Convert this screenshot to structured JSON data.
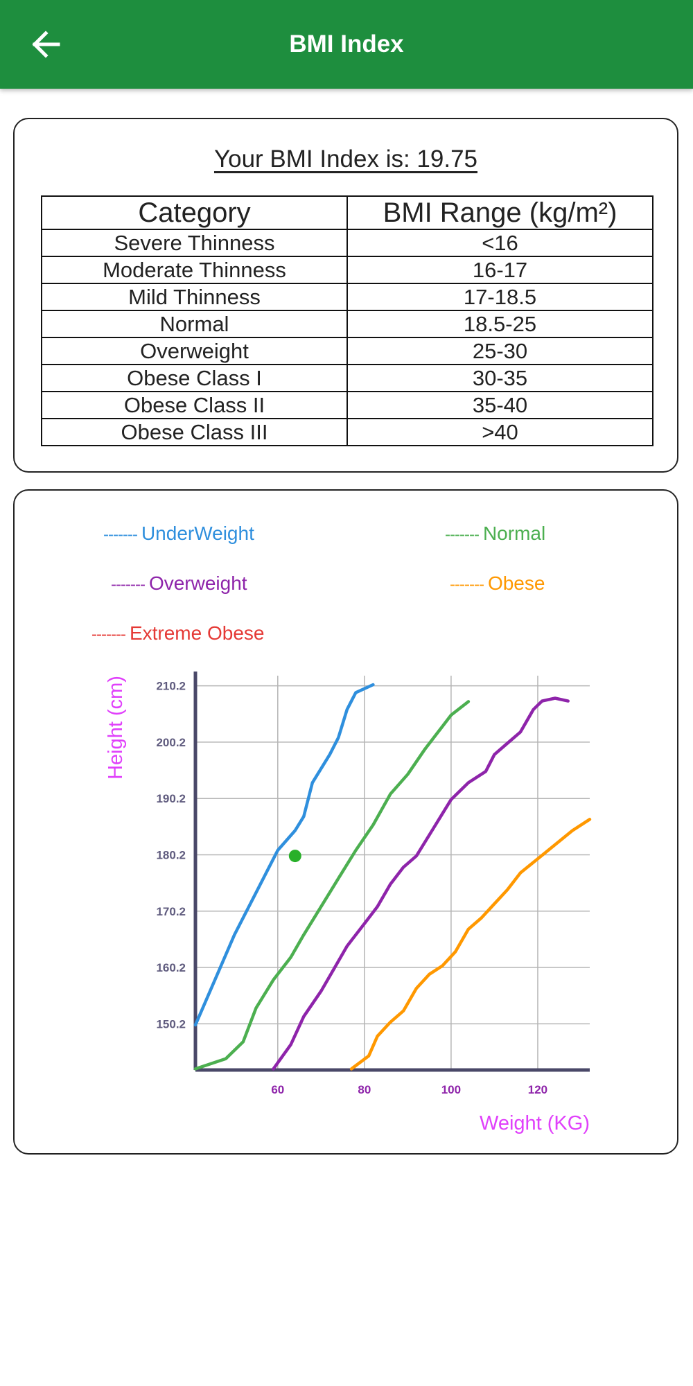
{
  "header": {
    "title": "BMI Index",
    "back_icon": "arrow-left-icon"
  },
  "bmi_card": {
    "title": "Your BMI Index is: 19.75",
    "columns": [
      "Category",
      "BMI Range (kg/m²)"
    ],
    "rows": [
      [
        "Severe Thinness",
        "<16"
      ],
      [
        "Moderate Thinness",
        "16-17"
      ],
      [
        "Mild Thinness",
        "17-18.5"
      ],
      [
        "Normal",
        "18.5-25"
      ],
      [
        "Overweight",
        "25-30"
      ],
      [
        "Obese Class I",
        "30-35"
      ],
      [
        "Obese Class II",
        "35-40"
      ],
      [
        "Obese Class III",
        ">40"
      ]
    ]
  },
  "legend": [
    {
      "dash": "-------",
      "label": "UnderWeight",
      "color": "#2f8fdd"
    },
    {
      "dash": "-------",
      "label": "Normal",
      "color": "#4caf50"
    },
    {
      "dash": "-------",
      "label": "Overweight",
      "color": "#8e24aa"
    },
    {
      "dash": "-------",
      "label": "Obese",
      "color": "#ff9800"
    },
    {
      "dash": "-------",
      "label": "Extreme Obese",
      "color": "#e53935"
    }
  ],
  "chart_data": {
    "type": "line",
    "xlabel": "Weight (KG)",
    "ylabel": "Height (cm)",
    "xlim": [
      41,
      132
    ],
    "ylim": [
      142,
      212
    ],
    "x_ticks": [
      60,
      80,
      100,
      120
    ],
    "y_ticks": [
      150.2,
      160.2,
      170.2,
      180.2,
      190.2,
      200.2,
      210.2
    ],
    "grid": true,
    "axis_color": "#4a4868",
    "label_color": "#e040fb",
    "series": [
      {
        "name": "UnderWeight",
        "color": "#2f8fdd",
        "points": [
          [
            41,
            150
          ],
          [
            50,
            166
          ],
          [
            60,
            181
          ],
          [
            64,
            184.5
          ],
          [
            66,
            187
          ],
          [
            68,
            193
          ],
          [
            72,
            198
          ],
          [
            74,
            201
          ],
          [
            76,
            206
          ],
          [
            78,
            209
          ],
          [
            82,
            210.4
          ]
        ]
      },
      {
        "name": "Normal",
        "color": "#4caf50",
        "points": [
          [
            41,
            142.2
          ],
          [
            48,
            144
          ],
          [
            52,
            147
          ],
          [
            55,
            153
          ],
          [
            59,
            158
          ],
          [
            63,
            162
          ],
          [
            66,
            166
          ],
          [
            70,
            171
          ],
          [
            74,
            176
          ],
          [
            78,
            181
          ],
          [
            82,
            185.5
          ],
          [
            86,
            191
          ],
          [
            90,
            194.5
          ],
          [
            94,
            199
          ],
          [
            97,
            202
          ],
          [
            100,
            205
          ],
          [
            104,
            207.4
          ]
        ]
      },
      {
        "name": "Overweight",
        "color": "#8e24aa",
        "points": [
          [
            59,
            142.2
          ],
          [
            63,
            146.5
          ],
          [
            66,
            151.5
          ],
          [
            70,
            156
          ],
          [
            73,
            160
          ],
          [
            76,
            164
          ],
          [
            80,
            168
          ],
          [
            83,
            171
          ],
          [
            86,
            175
          ],
          [
            89,
            178
          ],
          [
            92,
            180
          ],
          [
            96,
            185
          ],
          [
            100,
            190
          ],
          [
            104,
            193
          ],
          [
            108,
            195
          ],
          [
            110,
            198
          ],
          [
            113,
            200
          ],
          [
            116,
            202
          ],
          [
            119,
            206
          ],
          [
            121,
            207.5
          ],
          [
            124,
            208
          ],
          [
            127,
            207.5
          ]
        ]
      },
      {
        "name": "Obese",
        "color": "#ff9800",
        "points": [
          [
            77,
            142.2
          ],
          [
            81,
            144.5
          ],
          [
            83,
            148
          ],
          [
            86,
            150.5
          ],
          [
            89,
            152.5
          ],
          [
            92,
            156.5
          ],
          [
            95,
            159
          ],
          [
            98,
            160.5
          ],
          [
            101,
            163
          ],
          [
            104,
            167
          ],
          [
            107,
            169
          ],
          [
            110,
            171.5
          ],
          [
            113,
            174
          ],
          [
            116,
            177
          ],
          [
            120,
            179.5
          ],
          [
            124,
            182
          ],
          [
            128,
            184.5
          ],
          [
            132,
            186.5
          ]
        ]
      }
    ],
    "marker": {
      "x": 64,
      "y": 180,
      "color": "#29b02a"
    }
  }
}
